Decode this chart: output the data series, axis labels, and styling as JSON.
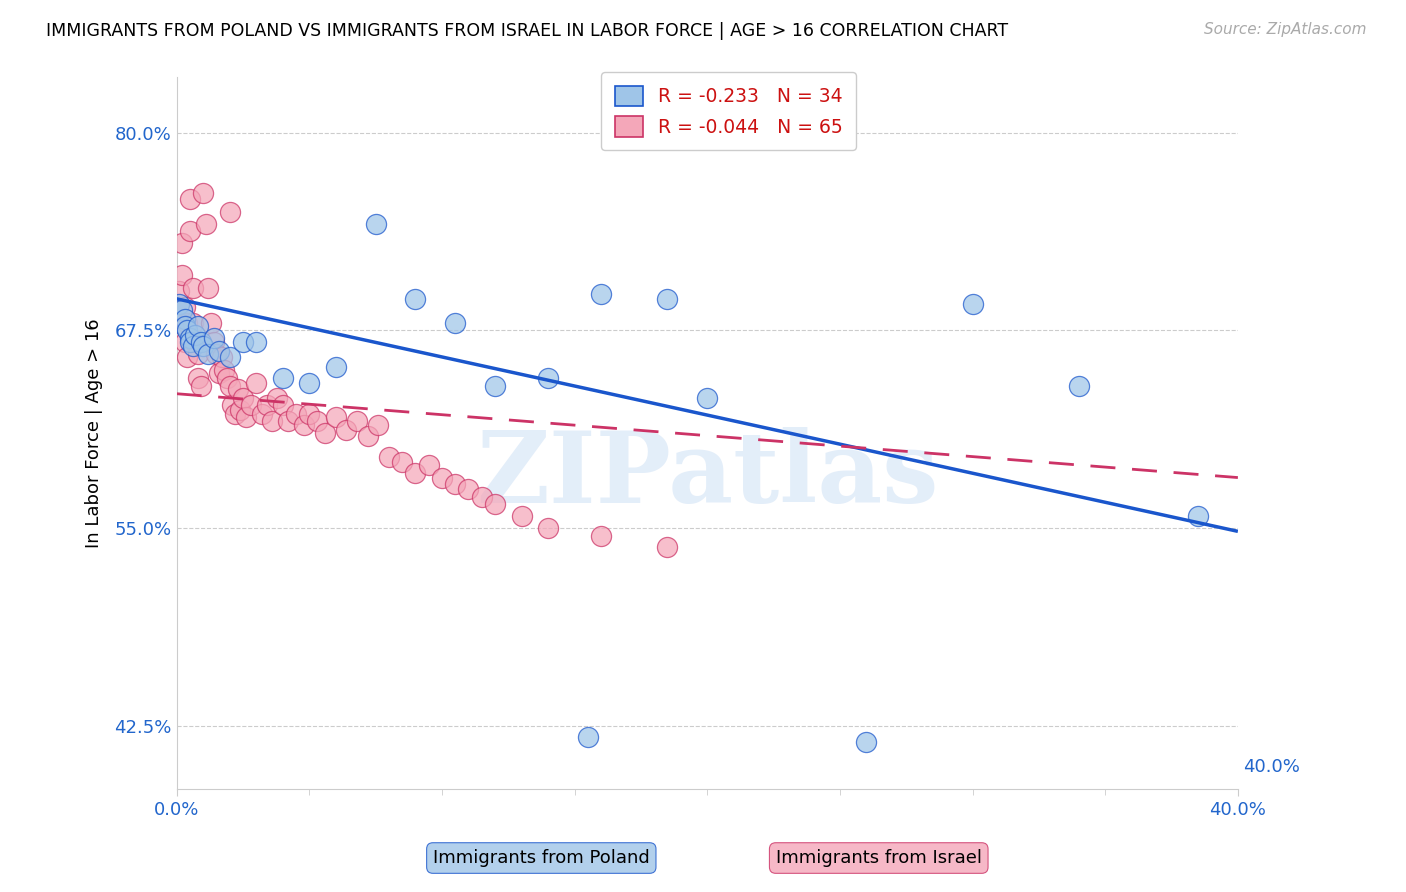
{
  "title": "IMMIGRANTS FROM POLAND VS IMMIGRANTS FROM ISRAEL IN LABOR FORCE | AGE > 16 CORRELATION CHART",
  "source": "Source: ZipAtlas.com",
  "ylabel": "In Labor Force | Age > 16",
  "legend_label1": "Immigrants from Poland",
  "legend_label2": "Immigrants from Israel",
  "R1": -0.233,
  "N1": 34,
  "R2": -0.044,
  "N2": 65,
  "color1": "#9fc5e8",
  "color2": "#f4a7b9",
  "line_color1": "#1a56cc",
  "line_color2": "#cc3366",
  "axis_label_color": "#2266cc",
  "grid_color": "#cccccc",
  "xlim": [
    0.0,
    0.4
  ],
  "ylim": [
    0.385,
    0.835
  ],
  "ytick_positions": [
    0.8,
    0.675,
    0.55,
    0.425
  ],
  "ytick_labels": [
    "80.0%",
    "67.5%",
    "55.0%",
    "42.5%"
  ],
  "xtick_positions": [
    0.0,
    0.4
  ],
  "xtick_labels": [
    "0.0%",
    "40.0%"
  ],
  "watermark_text": "ZIPatlas",
  "poland_x": [
    0.001,
    0.002,
    0.003,
    0.003,
    0.004,
    0.005,
    0.005,
    0.006,
    0.007,
    0.008,
    0.009,
    0.01,
    0.012,
    0.014,
    0.016,
    0.02,
    0.025,
    0.03,
    0.04,
    0.05,
    0.06,
    0.075,
    0.09,
    0.105,
    0.12,
    0.14,
    0.16,
    0.185,
    0.2,
    0.26,
    0.3,
    0.34,
    0.385,
    0.155
  ],
  "poland_y": [
    0.692,
    0.688,
    0.682,
    0.678,
    0.675,
    0.67,
    0.668,
    0.665,
    0.672,
    0.678,
    0.668,
    0.665,
    0.66,
    0.67,
    0.662,
    0.658,
    0.668,
    0.668,
    0.645,
    0.642,
    0.652,
    0.742,
    0.695,
    0.68,
    0.64,
    0.645,
    0.698,
    0.695,
    0.632,
    0.415,
    0.692,
    0.64,
    0.558,
    0.418
  ],
  "israel_x": [
    0.001,
    0.001,
    0.002,
    0.002,
    0.003,
    0.003,
    0.004,
    0.004,
    0.005,
    0.005,
    0.006,
    0.006,
    0.007,
    0.008,
    0.008,
    0.009,
    0.01,
    0.011,
    0.012,
    0.013,
    0.014,
    0.015,
    0.016,
    0.017,
    0.018,
    0.019,
    0.02,
    0.021,
    0.022,
    0.023,
    0.024,
    0.025,
    0.026,
    0.028,
    0.03,
    0.032,
    0.034,
    0.036,
    0.038,
    0.04,
    0.042,
    0.045,
    0.048,
    0.05,
    0.053,
    0.056,
    0.06,
    0.064,
    0.068,
    0.072,
    0.076,
    0.08,
    0.085,
    0.09,
    0.095,
    0.1,
    0.105,
    0.11,
    0.115,
    0.12,
    0.13,
    0.14,
    0.16,
    0.185,
    0.02
  ],
  "israel_y": [
    0.7,
    0.68,
    0.73,
    0.71,
    0.69,
    0.668,
    0.68,
    0.658,
    0.758,
    0.738,
    0.702,
    0.68,
    0.668,
    0.66,
    0.645,
    0.64,
    0.762,
    0.742,
    0.702,
    0.68,
    0.668,
    0.66,
    0.648,
    0.658,
    0.65,
    0.645,
    0.64,
    0.628,
    0.622,
    0.638,
    0.625,
    0.632,
    0.62,
    0.628,
    0.642,
    0.622,
    0.628,
    0.618,
    0.632,
    0.628,
    0.618,
    0.622,
    0.615,
    0.622,
    0.618,
    0.61,
    0.62,
    0.612,
    0.618,
    0.608,
    0.615,
    0.595,
    0.592,
    0.585,
    0.59,
    0.582,
    0.578,
    0.575,
    0.57,
    0.565,
    0.558,
    0.55,
    0.545,
    0.538,
    0.75
  ],
  "trend1_x0": 0.0,
  "trend1_y0": 0.695,
  "trend1_x1": 0.4,
  "trend1_y1": 0.548,
  "trend2_x0": 0.0,
  "trend2_y0": 0.635,
  "trend2_x1": 0.4,
  "trend2_y1": 0.582
}
